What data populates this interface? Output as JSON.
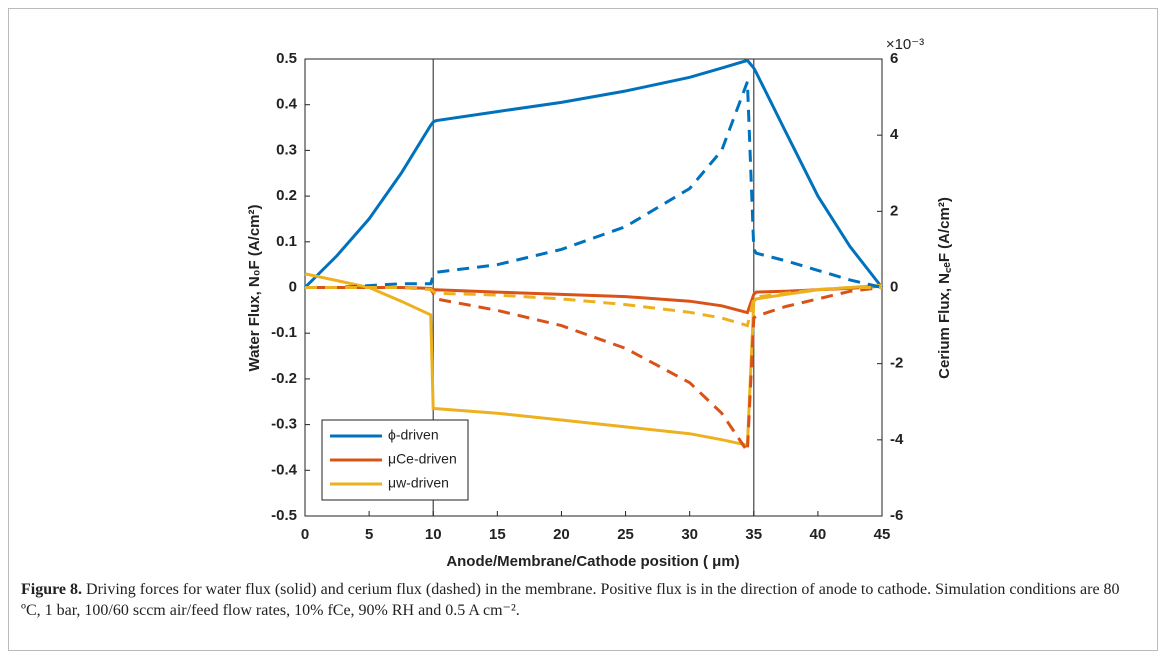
{
  "chart_data": {
    "type": "line",
    "y_label": "Water Flux, N₀F (A/cm²)",
    "y2_label": "Cerium Flux, N꜀ₑF (A/cm²)",
    "y2_exponent": "×10⁻³",
    "x_label": "Anode/Membrane/Cathode position ( μm)",
    "xlim": [
      0,
      45
    ],
    "xticks": [
      0,
      5,
      10,
      15,
      20,
      25,
      30,
      35,
      40,
      45
    ],
    "ylim": [
      -0.5,
      0.5
    ],
    "yticks": [
      -0.5,
      -0.4,
      -0.3,
      -0.2,
      -0.1,
      0,
      0.1,
      0.2,
      0.3,
      0.4,
      0.5
    ],
    "y2lim": [
      -6,
      6
    ],
    "y2ticks": [
      -6,
      -4,
      -2,
      0,
      2,
      4,
      6
    ],
    "boundaries": [
      10,
      35
    ],
    "legend": "lower left",
    "x": [
      0,
      2.5,
      5,
      7.5,
      9.8,
      10,
      10.2,
      15,
      20,
      25,
      30,
      32.5,
      34.5,
      35,
      35.2,
      37.5,
      40,
      42.5,
      45
    ],
    "series": [
      {
        "name": "ϕ-driven",
        "color": "#0072bd",
        "style": "solid",
        "values": [
          0,
          0.07,
          0.15,
          0.25,
          0.355,
          0.362,
          0.365,
          0.385,
          0.405,
          0.43,
          0.46,
          0.48,
          0.497,
          0.48,
          0.47,
          0.34,
          0.2,
          0.09,
          0
        ]
      },
      {
        "name": "μCe-driven",
        "color": "#d95319",
        "style": "solid",
        "values": [
          0,
          0,
          0,
          0,
          -0.002,
          -0.005,
          -0.005,
          -0.01,
          -0.015,
          -0.02,
          -0.03,
          -0.04,
          -0.055,
          -0.015,
          -0.01,
          -0.008,
          -0.005,
          -0.002,
          0.003
        ]
      },
      {
        "name": "μw-driven",
        "color": "#edb120",
        "style": "solid",
        "values": [
          0.03,
          0.015,
          0,
          -0.03,
          -0.06,
          -0.265,
          -0.265,
          -0.275,
          -0.29,
          -0.305,
          -0.32,
          -0.333,
          -0.345,
          -0.03,
          -0.025,
          -0.015,
          -0.005,
          0,
          0.005
        ]
      },
      {
        "color": "#0072bd",
        "style": "dashed",
        "axis": "y2",
        "values": [
          0,
          0,
          0.05,
          0.1,
          0.1,
          0.3,
          0.4,
          0.6,
          1.0,
          1.6,
          2.6,
          3.6,
          5.4,
          1.0,
          0.9,
          0.7,
          0.45,
          0.2,
          0
        ]
      },
      {
        "color": "#d95319",
        "style": "dashed",
        "axis": "y2",
        "values": [
          0,
          0,
          0,
          0,
          -0.05,
          -0.15,
          -0.3,
          -0.6,
          -1.0,
          -1.6,
          -2.5,
          -3.3,
          -4.3,
          -0.8,
          -0.75,
          -0.5,
          -0.3,
          -0.1,
          0
        ]
      },
      {
        "color": "#edb120",
        "style": "dashed",
        "axis": "y2",
        "values": [
          0,
          0,
          0,
          0,
          -0.05,
          -0.1,
          -0.15,
          -0.2,
          -0.3,
          -0.45,
          -0.65,
          -0.8,
          -1.0,
          -0.3,
          -0.25,
          -0.15,
          -0.05,
          0,
          0
        ]
      }
    ]
  },
  "caption": {
    "label": "Figure 8.",
    "text": " Driving forces for water flux (solid) and cerium flux (dashed) in the membrane. Positive flux is in the direction of anode to cathode. Simulation conditions are 80 ºC, 1 bar, 100/60 sccm air/feed flow rates, 10% fCe, 90% RH and 0.5 A cm⁻²."
  }
}
